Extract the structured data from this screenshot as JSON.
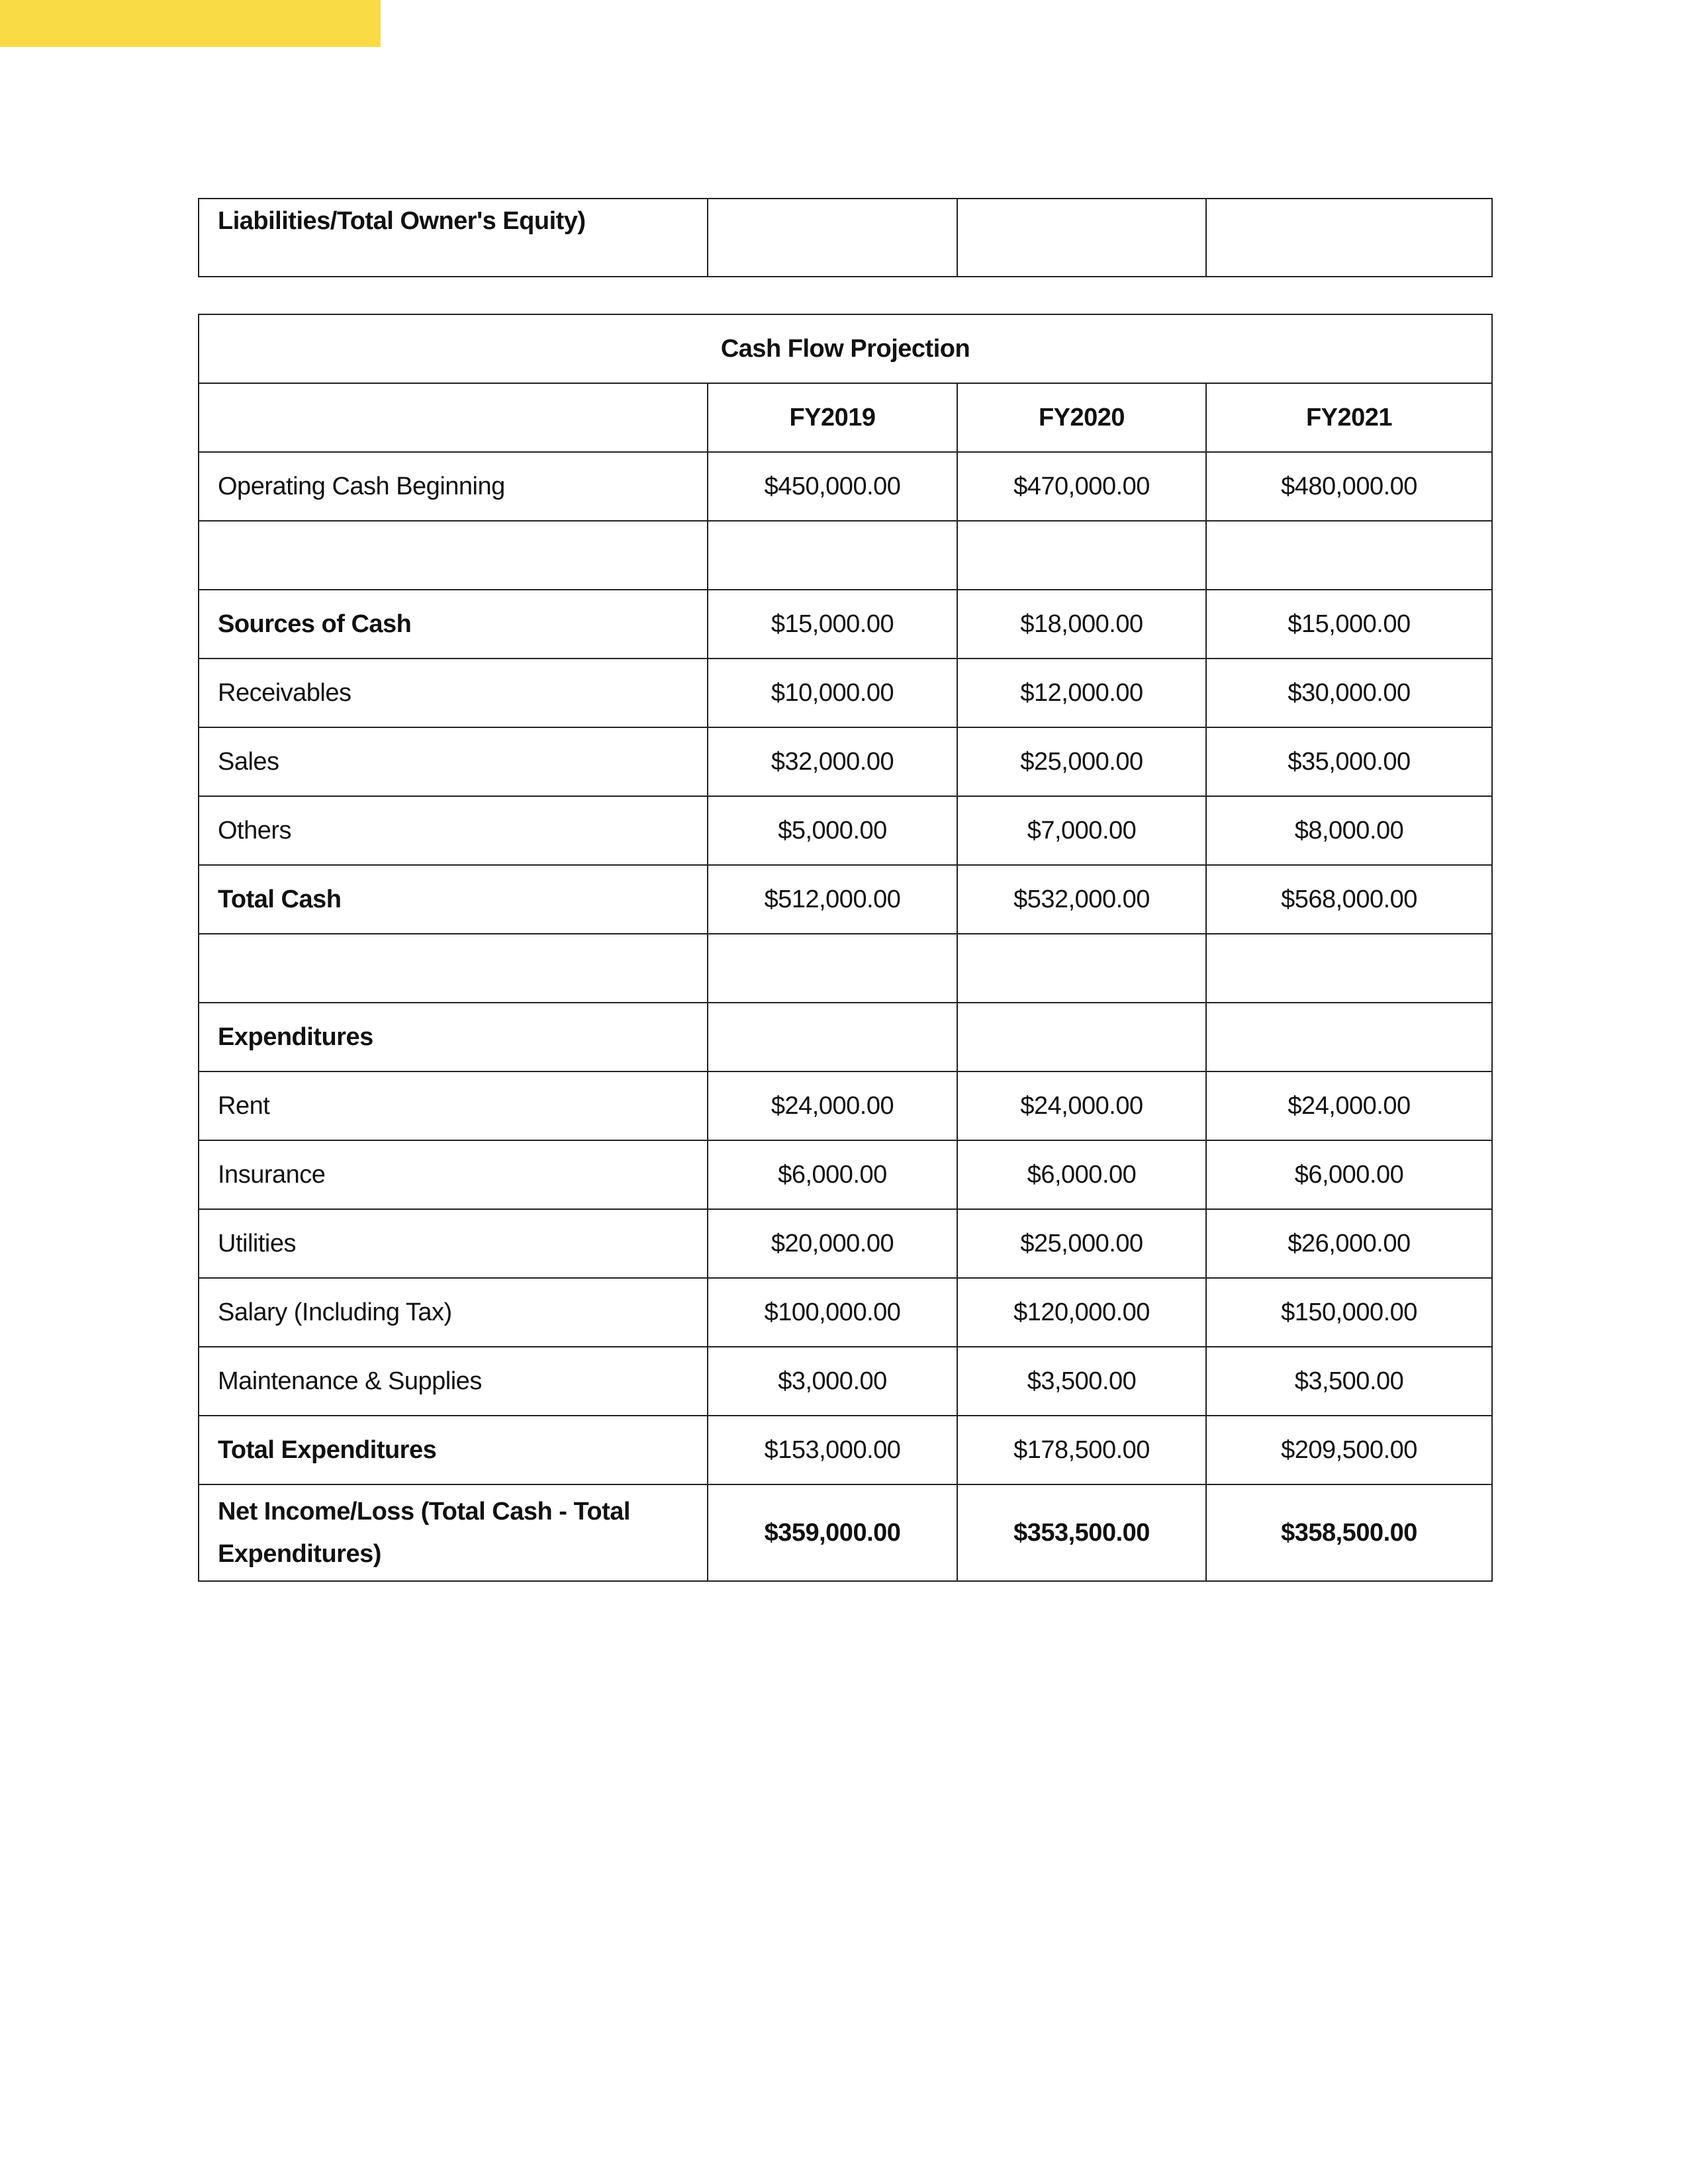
{
  "colors": {
    "accent_bar": "#F9DC45",
    "border": "#222222"
  },
  "prev_table": {
    "row_label": "Liabilities/Total Owner's Equity)"
  },
  "cash_flow": {
    "title": "Cash Flow Projection",
    "headers": [
      "FY2019",
      "FY2020",
      "FY2021"
    ],
    "rows": [
      {
        "label": "Operating Cash Beginning",
        "bold": false,
        "values": [
          "$450,000.00",
          "$470,000.00",
          "$480,000.00"
        ]
      },
      {
        "label": "",
        "bold": false,
        "values": [
          "",
          "",
          ""
        ]
      },
      {
        "label": "Sources of Cash",
        "bold": true,
        "values": [
          "$15,000.00",
          "$18,000.00",
          "$15,000.00"
        ]
      },
      {
        "label": "Receivables",
        "bold": false,
        "values": [
          "$10,000.00",
          "$12,000.00",
          "$30,000.00"
        ]
      },
      {
        "label": "Sales",
        "bold": false,
        "values": [
          "$32,000.00",
          "$25,000.00",
          "$35,000.00"
        ]
      },
      {
        "label": "Others",
        "bold": false,
        "values": [
          "$5,000.00",
          "$7,000.00",
          "$8,000.00"
        ]
      },
      {
        "label": "Total Cash",
        "bold": true,
        "values": [
          "$512,000.00",
          "$532,000.00",
          "$568,000.00"
        ]
      },
      {
        "label": "",
        "bold": false,
        "values": [
          "",
          "",
          ""
        ]
      },
      {
        "label": "Expenditures",
        "bold": true,
        "values": [
          "",
          "",
          ""
        ]
      },
      {
        "label": "Rent",
        "bold": false,
        "values": [
          "$24,000.00",
          "$24,000.00",
          "$24,000.00"
        ]
      },
      {
        "label": "Insurance",
        "bold": false,
        "values": [
          "$6,000.00",
          "$6,000.00",
          "$6,000.00"
        ]
      },
      {
        "label": "Utilities",
        "bold": false,
        "values": [
          "$20,000.00",
          "$25,000.00",
          "$26,000.00"
        ]
      },
      {
        "label": "Salary (Including Tax)",
        "bold": false,
        "values": [
          "$100,000.00",
          "$120,000.00",
          "$150,000.00"
        ]
      },
      {
        "label": "Maintenance & Supplies",
        "bold": false,
        "values": [
          "$3,000.00",
          "$3,500.00",
          "$3,500.00"
        ]
      },
      {
        "label": "Total Expenditures",
        "bold": true,
        "values": [
          "$153,000.00",
          "$178,500.00",
          "$209,500.00"
        ]
      }
    ],
    "net": {
      "label": "Net Income/Loss (Total Cash - Total Expenditures)",
      "values": [
        "$359,000.00",
        "$353,500.00",
        "$358,500.00"
      ]
    }
  }
}
